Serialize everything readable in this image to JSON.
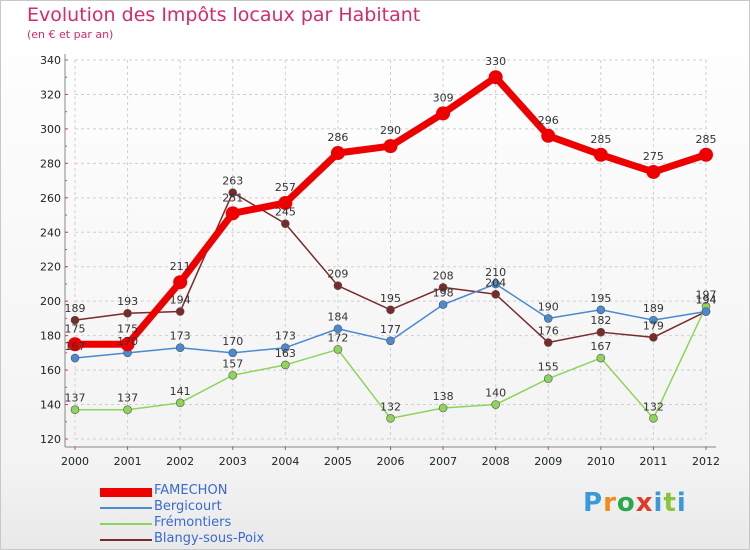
{
  "title": "Evolution des Impôts locaux par Habitant",
  "subtitle": "(en € et par an)",
  "logo": {
    "text": "Proxiti",
    "colors": [
      "#3a9ad9",
      "#f08c1e",
      "#2aa84a",
      "#e23a2a",
      "#3a9ad9",
      "#8ac43a",
      "#3a9ad9"
    ]
  },
  "chart_data": {
    "type": "line",
    "x": [
      "2000",
      "2001",
      "2002",
      "2003",
      "2004",
      "2005",
      "2006",
      "2007",
      "2008",
      "2009",
      "2010",
      "2011",
      "2012"
    ],
    "ylim": [
      120,
      340
    ],
    "yticks": [
      120,
      140,
      160,
      180,
      200,
      220,
      240,
      260,
      280,
      300,
      320,
      340
    ],
    "grid": true,
    "series": [
      {
        "name": "Blangy-sous-Poix",
        "color": "#7a2a2a",
        "width": 1.5,
        "marker": 4,
        "values": [
          189,
          193,
          194,
          263,
          245,
          209,
          195,
          208,
          204,
          176,
          182,
          179,
          194
        ]
      },
      {
        "name": "Frémontiers",
        "color": "#8ed45a",
        "width": 1.5,
        "marker": 4,
        "values": [
          137,
          137,
          141,
          157,
          163,
          172,
          132,
          138,
          140,
          155,
          167,
          132,
          197
        ]
      },
      {
        "name": "Bergicourt",
        "color": "#4a8ad0",
        "width": 1.5,
        "marker": 4,
        "values": [
          167,
          170,
          173,
          170,
          173,
          184,
          177,
          198,
          210,
          190,
          195,
          189,
          194
        ]
      },
      {
        "name": "FAMECHON",
        "color": "#ee0000",
        "width": 7,
        "marker": 7,
        "values": [
          175,
          175,
          211,
          251,
          257,
          286,
          290,
          309,
          330,
          296,
          285,
          275,
          285
        ]
      }
    ],
    "legend_order": [
      "FAMECHON",
      "Bergicourt",
      "Frémontiers",
      "Blangy-sous-Poix"
    ],
    "legend_text_colors": {
      "FAMECHON": "#3a6ad0",
      "Bergicourt": "#3a6ad0",
      "Frémontiers": "#3a6ad0",
      "Blangy-sous-Poix": "#3a6ad0"
    }
  }
}
